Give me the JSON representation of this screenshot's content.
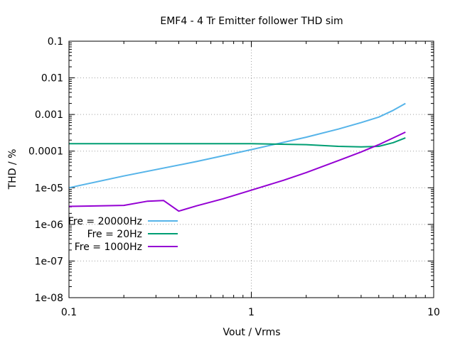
{
  "chart_data": {
    "type": "line",
    "title": "EMF4 - 4 Tr Emitter follower THD sim",
    "xlabel": "Vout / Vrms",
    "ylabel": "THD / %",
    "xscale": "log",
    "yscale": "log",
    "xlim": [
      0.1,
      10
    ],
    "ylim": [
      1e-08,
      0.1
    ],
    "grid": true,
    "legend_position": "bottom-left",
    "x_ticks": [
      {
        "value": 0.1,
        "label": "0.1"
      },
      {
        "value": 1,
        "label": "1"
      },
      {
        "value": 10,
        "label": "10"
      }
    ],
    "y_ticks": [
      {
        "value": 1e-08,
        "label": "1e-08"
      },
      {
        "value": 1e-07,
        "label": "1e-07"
      },
      {
        "value": 1e-06,
        "label": "1e-06"
      },
      {
        "value": 1e-05,
        "label": "1e-05"
      },
      {
        "value": 0.0001,
        "label": "0.0001"
      },
      {
        "value": 0.001,
        "label": "0.001"
      },
      {
        "value": 0.01,
        "label": "0.01"
      },
      {
        "value": 0.1,
        "label": "0.1"
      }
    ],
    "series": [
      {
        "name": "Fre = 20000Hz",
        "color": "#56b4e9",
        "points": [
          [
            0.1,
            1e-05
          ],
          [
            0.2,
            2.1e-05
          ],
          [
            0.5,
            5.2e-05
          ],
          [
            1.0,
            0.00011
          ],
          [
            2.0,
            0.00024
          ],
          [
            3.0,
            0.0004
          ],
          [
            4.0,
            0.0006
          ],
          [
            5.0,
            0.00085
          ],
          [
            6.0,
            0.0013
          ],
          [
            7.0,
            0.002
          ]
        ]
      },
      {
        "name": "Fre = 20Hz",
        "color": "#009e73",
        "points": [
          [
            0.1,
            0.00016
          ],
          [
            0.5,
            0.00016
          ],
          [
            1.0,
            0.00016
          ],
          [
            2.0,
            0.00015
          ],
          [
            3.0,
            0.000135
          ],
          [
            4.0,
            0.00013
          ],
          [
            5.0,
            0.000135
          ],
          [
            6.0,
            0.00017
          ],
          [
            7.0,
            0.00023
          ]
        ]
      },
      {
        "name": "Fre = 1000Hz",
        "color": "#9400d3",
        "points": [
          [
            0.1,
            3.1e-06
          ],
          [
            0.2,
            3.3e-06
          ],
          [
            0.27,
            4.3e-06
          ],
          [
            0.33,
            4.5e-06
          ],
          [
            0.4,
            2.3e-06
          ],
          [
            0.5,
            3.2e-06
          ],
          [
            0.7,
            5e-06
          ],
          [
            1.0,
            8.6e-06
          ],
          [
            1.5,
            1.6e-05
          ],
          [
            2.0,
            2.6e-05
          ],
          [
            3.0,
            5.5e-05
          ],
          [
            4.0,
            9.5e-05
          ],
          [
            5.0,
            0.00015
          ],
          [
            6.0,
            0.00023
          ],
          [
            7.0,
            0.00033
          ]
        ]
      }
    ]
  }
}
